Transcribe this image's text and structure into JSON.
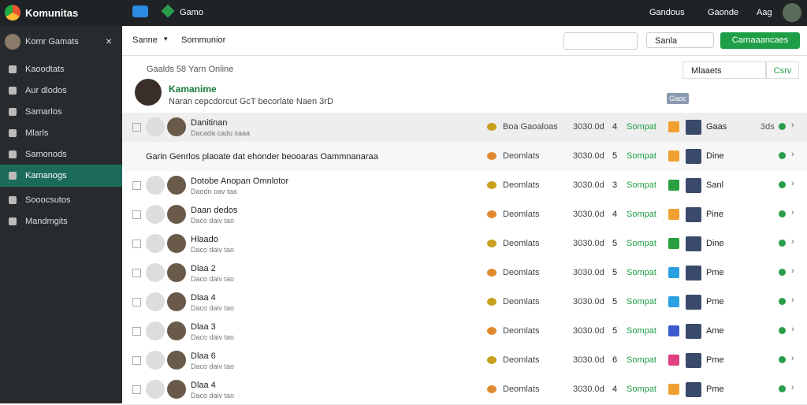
{
  "topbar": {
    "brand": "Komunitas",
    "tab": "Gamo",
    "actions": [
      "Gandous",
      "Gaonde",
      "Aag"
    ]
  },
  "sidebar": {
    "title": "Komr Gamats",
    "items": [
      "Kaoodtats",
      "Aur dlodos",
      "Samarlos",
      "Mlarls",
      "Samonods",
      "Kamanogs",
      "Sooocsutos",
      "Mandmgits"
    ]
  },
  "toolbar": {
    "sort": "Sanne",
    "heading": "Sommunior",
    "filter": "Sanla",
    "button": "Carnaaancaes"
  },
  "profile": {
    "meta": "Gaalds 58 Yarn Online",
    "name": "Kamanime",
    "bio": "Naran cepcdorcut GcT becorlate Naen 3rD",
    "search": "Mlaaets",
    "action": "Csrv",
    "tag": "Gaoc"
  },
  "rows": [
    {
      "name": "Danitinan",
      "sub": "Dacada cadu saaa",
      "tag": "Boa Gaoaloas",
      "count": "3030.0d",
      "num": "4",
      "link": "Sompat",
      "game": "Gaas",
      "extra": "3ds"
    },
    {
      "name": "Garin Genrlos plaoate dat ehonder beooaras Oammnanaraa",
      "tag": "Deomlats",
      "count": "3030.0d",
      "num": "5",
      "link": "Sompat",
      "game": "Dine"
    },
    {
      "name": "Dotobe Anopan Omnlotor",
      "sub": "Daodn oav taa",
      "tag": "Deomlats",
      "count": "3030.0d",
      "num": "3",
      "link": "Sompat",
      "game": "Sanl"
    },
    {
      "name": "Daan dedos",
      "sub": "Daco daiv tao",
      "tag": "Deomlats",
      "count": "3030.0d",
      "num": "4",
      "link": "Sompat",
      "game": "Pine"
    },
    {
      "name": "Hlaado",
      "sub": "Daco daiv tao",
      "tag": "Deomlats",
      "count": "3030.0d",
      "num": "5",
      "link": "Sompat",
      "game": "Dine"
    },
    {
      "name": "Dlaa 2",
      "sub": "Daco daiv tao",
      "tag": "Deomlats",
      "count": "3030.0d",
      "num": "5",
      "link": "Sompat",
      "game": "Pme"
    },
    {
      "name": "Dlaa 4",
      "sub": "Daco daiv tao",
      "tag": "Deomlats",
      "count": "3030.0d",
      "num": "5",
      "link": "Sompat",
      "game": "Pme"
    },
    {
      "name": "Dlaa 3",
      "sub": "Daco daiv tao",
      "tag": "Deomlats",
      "count": "3030.0d",
      "num": "5",
      "link": "Sompat",
      "game": "Ame"
    },
    {
      "name": "Dlaa 6",
      "sub": "Daco daiv tao",
      "tag": "Deomlats",
      "count": "3030.0d",
      "num": "6",
      "link": "Sompat",
      "game": "Pme"
    },
    {
      "name": "Dlaa 4",
      "sub": "Daco daiv tao",
      "tag": "Deomlats",
      "count": "3030.0d",
      "num": "4",
      "link": "Sompat",
      "game": "Pme"
    }
  ]
}
